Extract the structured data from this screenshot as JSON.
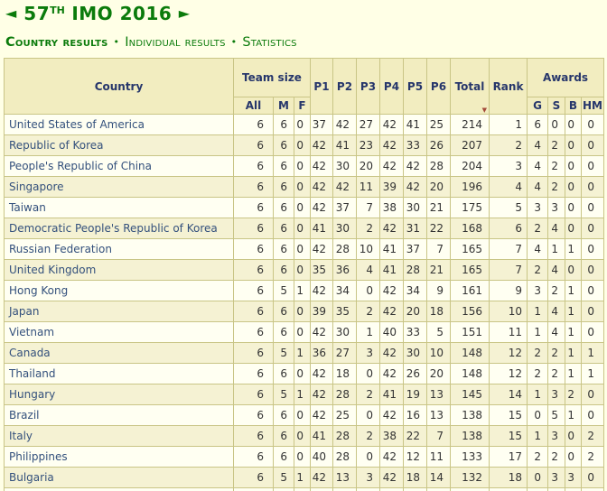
{
  "header": {
    "prev_icon": "◄",
    "next_icon": "►",
    "title_number": "57",
    "title_ordinal": "TH",
    "title_text": "IMO 2016"
  },
  "nav": {
    "separator": "•",
    "items": [
      {
        "label": "Country results",
        "active": true
      },
      {
        "label": "Individual results",
        "active": false
      },
      {
        "label": "Statistics",
        "active": false
      }
    ]
  },
  "colors": {
    "title_green": "#0B7B0B",
    "header_navy": "#26366B",
    "link_blue": "#33507C",
    "border_tan": "#C9C586",
    "header_bg": "#F2EDC0",
    "row_even_bg": "#F5F2D3",
    "row_odd_bg": "#FFFFF2",
    "page_bg": "#FFFFE6",
    "sort_red": "#A34A3A"
  },
  "table": {
    "header": {
      "country": "Country",
      "team_size": "Team size",
      "all": "All",
      "m": "M",
      "f": "F",
      "problems": [
        "P1",
        "P2",
        "P3",
        "P4",
        "P5",
        "P6"
      ],
      "total": "Total",
      "rank": "Rank",
      "awards": "Awards",
      "g": "G",
      "s": "S",
      "b": "B",
      "hm": "HM",
      "sort_indicator": "▼"
    },
    "columns": [
      "all",
      "m",
      "f",
      "p1",
      "p2",
      "p3",
      "p4",
      "p5",
      "p6",
      "total",
      "rank",
      "g",
      "s",
      "b",
      "hm"
    ],
    "rows": [
      {
        "country": "United States of America",
        "values": [
          6,
          6,
          0,
          37,
          42,
          27,
          42,
          41,
          25,
          214,
          1,
          6,
          0,
          0,
          0
        ]
      },
      {
        "country": "Republic of Korea",
        "values": [
          6,
          6,
          0,
          42,
          41,
          23,
          42,
          33,
          26,
          207,
          2,
          4,
          2,
          0,
          0
        ]
      },
      {
        "country": "People's Republic of China",
        "values": [
          6,
          6,
          0,
          42,
          30,
          20,
          42,
          42,
          28,
          204,
          3,
          4,
          2,
          0,
          0
        ]
      },
      {
        "country": "Singapore",
        "values": [
          6,
          6,
          0,
          42,
          42,
          11,
          39,
          42,
          20,
          196,
          4,
          4,
          2,
          0,
          0
        ]
      },
      {
        "country": "Taiwan",
        "values": [
          6,
          6,
          0,
          42,
          37,
          7,
          38,
          30,
          21,
          175,
          5,
          3,
          3,
          0,
          0
        ]
      },
      {
        "country": "Democratic People's Republic of Korea",
        "values": [
          6,
          6,
          0,
          41,
          30,
          2,
          42,
          31,
          22,
          168,
          6,
          2,
          4,
          0,
          0
        ]
      },
      {
        "country": "Russian Federation",
        "values": [
          6,
          6,
          0,
          42,
          28,
          10,
          41,
          37,
          7,
          165,
          7,
          4,
          1,
          1,
          0
        ]
      },
      {
        "country": "United Kingdom",
        "values": [
          6,
          6,
          0,
          35,
          36,
          4,
          41,
          28,
          21,
          165,
          7,
          2,
          4,
          0,
          0
        ]
      },
      {
        "country": "Hong Kong",
        "values": [
          6,
          5,
          1,
          42,
          34,
          0,
          42,
          34,
          9,
          161,
          9,
          3,
          2,
          1,
          0
        ]
      },
      {
        "country": "Japan",
        "values": [
          6,
          6,
          0,
          39,
          35,
          2,
          42,
          20,
          18,
          156,
          10,
          1,
          4,
          1,
          0
        ]
      },
      {
        "country": "Vietnam",
        "values": [
          6,
          6,
          0,
          42,
          30,
          1,
          40,
          33,
          5,
          151,
          11,
          1,
          4,
          1,
          0
        ]
      },
      {
        "country": "Canada",
        "values": [
          6,
          5,
          1,
          36,
          27,
          3,
          42,
          30,
          10,
          148,
          12,
          2,
          2,
          1,
          1
        ]
      },
      {
        "country": "Thailand",
        "values": [
          6,
          6,
          0,
          42,
          18,
          0,
          42,
          26,
          20,
          148,
          12,
          2,
          2,
          1,
          1
        ]
      },
      {
        "country": "Hungary",
        "values": [
          6,
          5,
          1,
          42,
          28,
          2,
          41,
          19,
          13,
          145,
          14,
          1,
          3,
          2,
          0
        ]
      },
      {
        "country": "Brazil",
        "values": [
          6,
          6,
          0,
          42,
          25,
          0,
          42,
          16,
          13,
          138,
          15,
          0,
          5,
          1,
          0
        ]
      },
      {
        "country": "Italy",
        "values": [
          6,
          6,
          0,
          41,
          28,
          2,
          38,
          22,
          7,
          138,
          15,
          1,
          3,
          0,
          2
        ]
      },
      {
        "country": "Philippines",
        "values": [
          6,
          6,
          0,
          40,
          28,
          0,
          42,
          12,
          11,
          133,
          17,
          2,
          2,
          0,
          2
        ]
      },
      {
        "country": "Bulgaria",
        "values": [
          6,
          5,
          1,
          42,
          13,
          3,
          42,
          18,
          14,
          132,
          18,
          0,
          3,
          3,
          0
        ]
      }
    ]
  }
}
